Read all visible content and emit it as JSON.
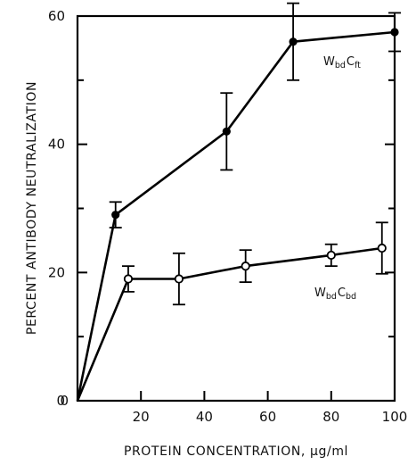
{
  "chart_data": {
    "type": "line",
    "title": "",
    "xlabel": "PROTEIN  CONCENTRATION, µg/ml",
    "ylabel": "PERCENT  ANTIBODY  NEUTRALIZATION",
    "xlim": [
      0,
      100
    ],
    "ylim": [
      0,
      60
    ],
    "x_ticks": [
      20,
      40,
      60,
      80,
      100
    ],
    "y_ticks": [
      0,
      20,
      40,
      60
    ],
    "grid": false,
    "series": [
      {
        "name": "WbdCft",
        "label_main": [
          "W",
          "C"
        ],
        "label_sub": [
          "bd",
          "ft"
        ],
        "marker": "filled-circle",
        "color": "#000000",
        "points": [
          {
            "x": 0,
            "y": 0
          },
          {
            "x": 12,
            "y": 29,
            "err": 2
          },
          {
            "x": 47,
            "y": 42,
            "err": 6
          },
          {
            "x": 68,
            "y": 56,
            "err": 6
          },
          {
            "x": 100,
            "y": 57.5,
            "err": 3
          }
        ]
      },
      {
        "name": "WbdCbd",
        "label_main": [
          "W",
          "C"
        ],
        "label_sub": [
          "bd",
          "bd"
        ],
        "marker": "open-circle",
        "color": "#000000",
        "points": [
          {
            "x": 0,
            "y": 0
          },
          {
            "x": 16,
            "y": 19,
            "err": 2
          },
          {
            "x": 32,
            "y": 19,
            "err": 4
          },
          {
            "x": 53,
            "y": 21,
            "err": 2.5
          },
          {
            "x": 80,
            "y": 22.7,
            "err": 1.7
          },
          {
            "x": 96,
            "y": 23.8,
            "err": 4
          }
        ]
      }
    ]
  }
}
